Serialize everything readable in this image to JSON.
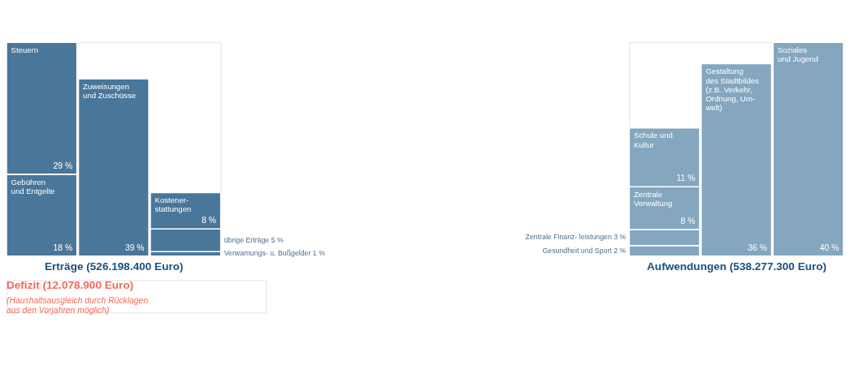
{
  "chart_data": [
    {
      "type": "bar",
      "stacked": true,
      "categories": [
        null,
        null,
        null
      ],
      "xlabel": "Erträge (526.198.400 Euro)",
      "annotations": [
        "Defizit (12.078.900 Euro)",
        "(Haushaltsausgleich durch Rücklagen\naus den Vorjahren möglich)"
      ],
      "series": [
        {
          "name": "Gebühren\nund Entgelte",
          "color": "#4a7699",
          "values": [
            18,
            null,
            null
          ],
          "value_labels": [
            "18 %",
            null,
            null
          ]
        },
        {
          "name": "Steuern",
          "color": "#4a7699",
          "values": [
            29,
            null,
            null
          ],
          "value_labels": [
            "29 %",
            null,
            null
          ]
        },
        {
          "name": "Zuweisungen\nund Zuschüsse",
          "color": "#4a7699",
          "values": [
            null,
            39,
            null
          ],
          "value_labels": [
            null,
            "39 %",
            null
          ]
        },
        {
          "name": "Verwarnungs- u.\nBußgelder",
          "color": "#4a7699",
          "values": [
            null,
            null,
            1
          ],
          "value_labels": [
            null,
            null,
            "1 %"
          ]
        },
        {
          "name": "übrige Erträge",
          "color": "#4a7699",
          "values": [
            null,
            null,
            5
          ],
          "value_labels": [
            null,
            null,
            "5 %"
          ]
        },
        {
          "name": "Kostener-\nstattungen",
          "color": "#4a7699",
          "values": [
            null,
            null,
            8
          ],
          "value_labels": [
            null,
            null,
            "8 %"
          ]
        }
      ]
    },
    {
      "type": "bar",
      "stacked": true,
      "categories": [
        null,
        null,
        null
      ],
      "xlabel": "Aufwendungen (538.277.300 Euro)",
      "series": [
        {
          "name": "Gesundheit\nund Sport",
          "color": "#84a6bf",
          "values": [
            2,
            null,
            null
          ],
          "value_labels": [
            "2 %",
            null,
            null
          ]
        },
        {
          "name": "Zentrale Finanz-\nleistungen",
          "color": "#84a6bf",
          "values": [
            3,
            null,
            null
          ],
          "value_labels": [
            "3 %",
            null,
            null
          ]
        },
        {
          "name": "Zentrale\nVerwaltung",
          "color": "#84a6bf",
          "values": [
            8,
            null,
            null
          ],
          "value_labels": [
            "8 %",
            null,
            null
          ]
        },
        {
          "name": "Schule und\nKultur",
          "color": "#84a6bf",
          "values": [
            11,
            null,
            null
          ],
          "value_labels": [
            "11 %",
            null,
            null
          ]
        },
        {
          "name": "Gestaltung\ndes Stadtbildes\n(z.B. Verkehr,\nOrdnung, Um-\nwelt)",
          "color": "#84a6bf",
          "values": [
            null,
            36,
            null
          ],
          "value_labels": [
            null,
            "36 %",
            null
          ]
        },
        {
          "name": "Soziales\nund Jugend",
          "color": "#84a6bf",
          "values": [
            null,
            null,
            40
          ],
          "value_labels": [
            null,
            null,
            "40 %"
          ]
        }
      ]
    }
  ]
}
